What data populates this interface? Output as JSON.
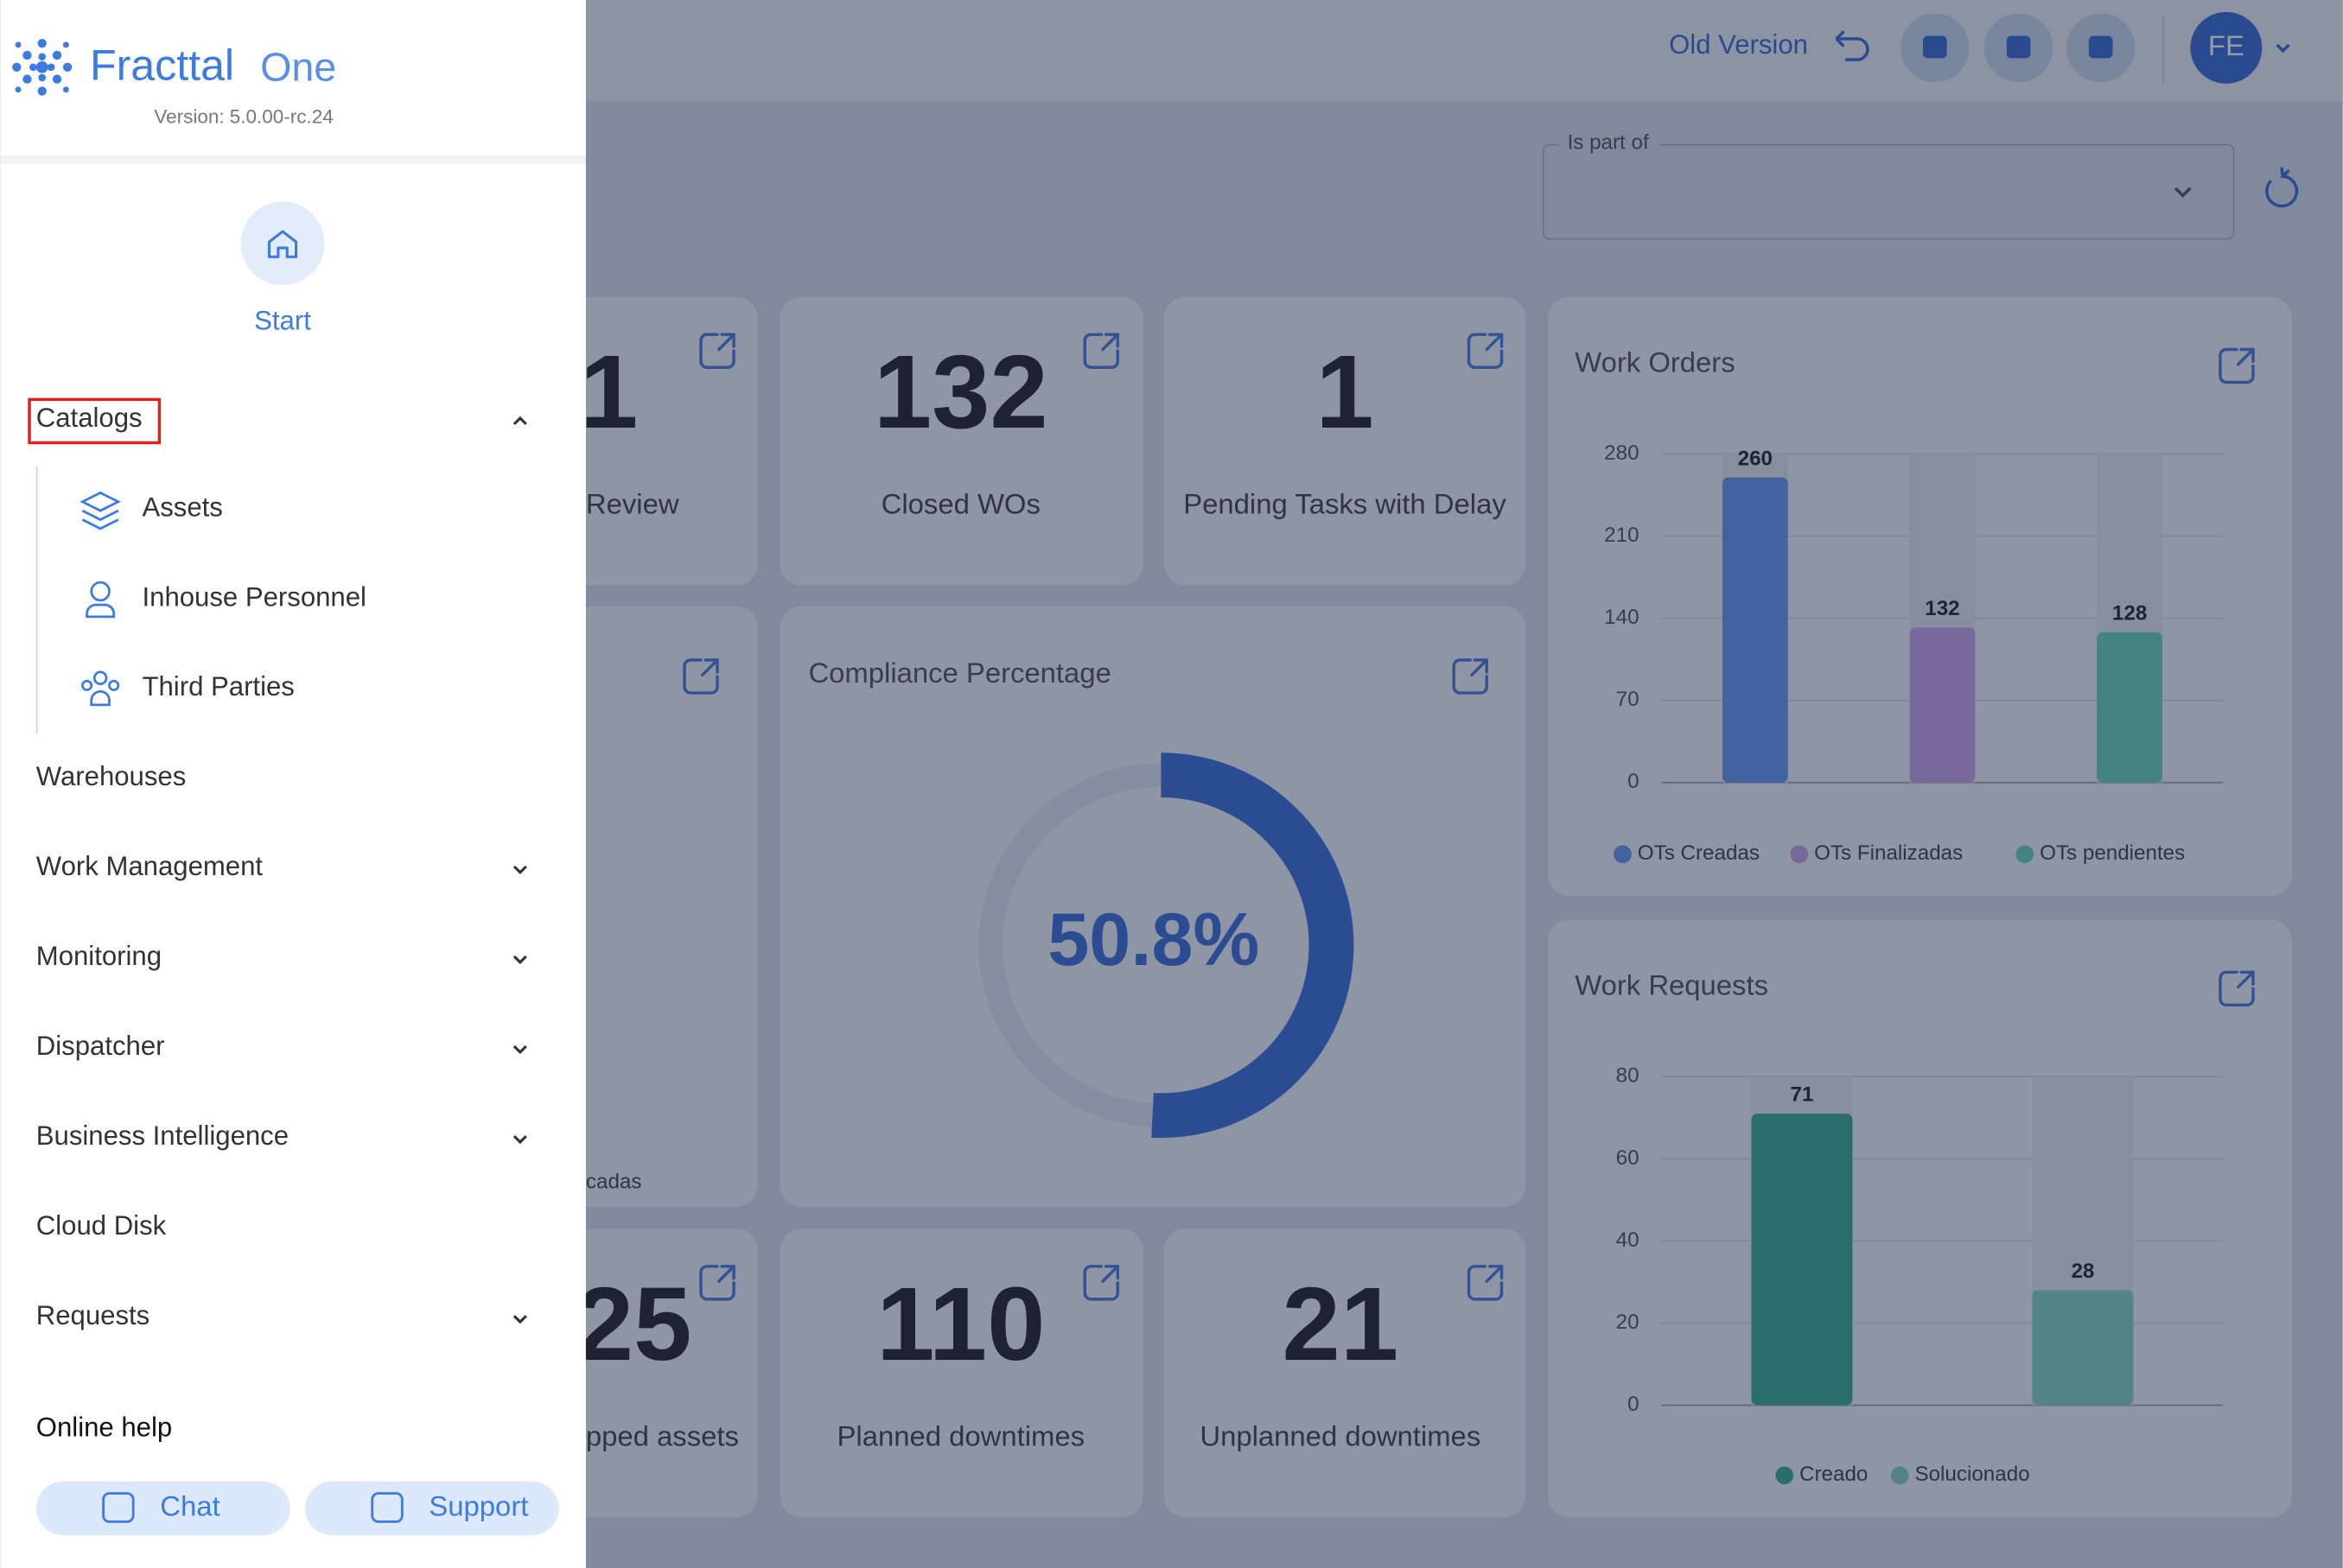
{
  "header": {
    "brand": "Fracttal",
    "brand_suffix": "One",
    "version": "Version: 5.0.00-rc.24",
    "old_version": "Old Version",
    "avatar": "FE"
  },
  "sidebar": {
    "start": "Start",
    "catalogs": {
      "label": "Catalogs",
      "items": [
        "Assets",
        "Inhouse Personnel",
        "Third Parties"
      ]
    },
    "menu": [
      {
        "label": "Warehouses",
        "expandable": false
      },
      {
        "label": "Work Management",
        "expandable": true
      },
      {
        "label": "Monitoring",
        "expandable": true
      },
      {
        "label": "Dispatcher",
        "expandable": true
      },
      {
        "label": "Business Intelligence",
        "expandable": true
      },
      {
        "label": "Cloud Disk",
        "expandable": false
      },
      {
        "label": "Requests",
        "expandable": true
      }
    ],
    "online_help": "Online help",
    "chat": "Chat",
    "support": "Support"
  },
  "filter": {
    "label": "Is part of"
  },
  "kpis": [
    {
      "value": 1,
      "label": "Review"
    },
    {
      "value": 132,
      "label": "Closed WOs"
    },
    {
      "value": 1,
      "label": "Pending Tasks with Delay"
    },
    {
      "value": 25,
      "label": "pped assets"
    },
    {
      "value": 110,
      "label": "Planned downtimes"
    },
    {
      "value": 21,
      "label": "Unplanned downtimes"
    }
  ],
  "partial_card": {
    "label": "cadas"
  },
  "compliance": {
    "title": "Compliance Percentage",
    "value": 50.8,
    "value_label": "50.8%",
    "color": "#2d62d6"
  },
  "chart_data": [
    {
      "type": "bar",
      "title": "Work Orders",
      "categories": [
        null,
        null,
        null
      ],
      "values": [
        260,
        132,
        128
      ],
      "colors": [
        "#5b8ef0",
        "#c79ae6",
        "#5fd0b0"
      ],
      "legend": [
        "OTs Creadas",
        "OTs Finalizadas",
        "OTs pendientes"
      ],
      "ylim": [
        0,
        280
      ],
      "yticks": [
        0,
        70,
        140,
        210,
        280
      ],
      "grid": true
    },
    {
      "type": "bar",
      "title": "Work Requests",
      "categories": [
        null,
        null
      ],
      "values": [
        71,
        28
      ],
      "colors": [
        "#2aa58a",
        "#7fd0bd"
      ],
      "legend": [
        "Creado",
        "Solucionado"
      ],
      "ylim": [
        0,
        80
      ],
      "yticks": [
        0,
        20,
        40,
        60,
        80
      ],
      "grid": true
    }
  ]
}
